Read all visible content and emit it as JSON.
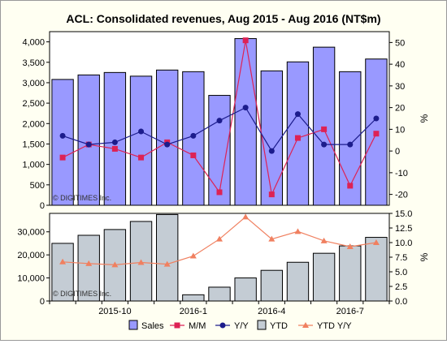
{
  "chart_data": {
    "type": "bar",
    "title": "ACL: Consolidated revenues, Aug 2015 - Aug 2016 (NT$m)",
    "watermark": "© DIGITIMES Inc.",
    "x_labels": [
      {
        "index": 2,
        "label": "2015-10"
      },
      {
        "index": 5,
        "label": "2016-1"
      },
      {
        "index": 8,
        "label": "2016-4"
      },
      {
        "index": 11,
        "label": "2016-7"
      }
    ],
    "top_panel": {
      "left_ylim": [
        0,
        4250
      ],
      "left_ticks": [
        "0",
        "500",
        "1,000",
        "1,500",
        "2,000",
        "2,500",
        "3,000",
        "3,500",
        "4,000"
      ],
      "right_ylim": [
        -25,
        55
      ],
      "right_ticks": [
        "-20",
        "-10",
        "0",
        "10",
        "20",
        "30",
        "40",
        "50"
      ],
      "right_label": "%",
      "sales": [
        3080,
        3190,
        3250,
        3160,
        3310,
        3270,
        2690,
        4080,
        3290,
        3510,
        3870,
        3270,
        3580
      ],
      "mm": [
        -3,
        3,
        1,
        -3,
        4,
        -2,
        -19,
        51,
        -20,
        6,
        10,
        -16,
        8
      ],
      "yy": [
        7,
        3,
        4,
        9,
        3,
        7,
        14,
        20,
        0,
        17,
        3,
        3,
        15
      ]
    },
    "bottom_panel": {
      "left_ylim": [
        0,
        38000
      ],
      "left_ticks": [
        "0",
        "10,000",
        "20,000",
        "30,000"
      ],
      "right_ylim": [
        0,
        15
      ],
      "right_ticks": [
        "0.0",
        "2.5",
        "5.0",
        "7.5",
        "10.0",
        "12.5",
        "15.0"
      ],
      "right_label": "%",
      "ytd": [
        25000,
        28500,
        31000,
        34500,
        37500,
        2700,
        6000,
        10000,
        13300,
        16800,
        20700,
        23900,
        27600
      ],
      "ytd_yy": [
        6.7,
        6.4,
        6.2,
        6.6,
        6.3,
        7.7,
        10.6,
        14.4,
        10.6,
        11.9,
        10.3,
        9.3,
        10.0
      ]
    },
    "legend": [
      {
        "label": "Sales",
        "kind": "bar",
        "color": "#9999ff"
      },
      {
        "label": "M/M",
        "kind": "line",
        "marker": "square",
        "color": "#dd2255"
      },
      {
        "label": "Y/Y",
        "kind": "line",
        "marker": "circle",
        "color": "#1c1c8c"
      },
      {
        "label": "YTD",
        "kind": "bar",
        "color": "#c4ccd4"
      },
      {
        "label": "YTD Y/Y",
        "kind": "line",
        "marker": "triangle",
        "color": "#f08060"
      }
    ]
  }
}
